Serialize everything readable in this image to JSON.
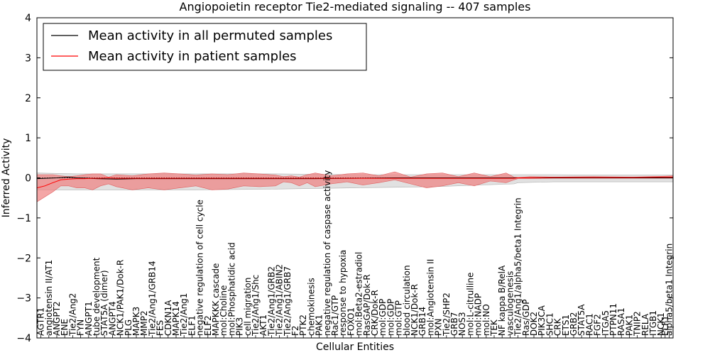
{
  "chart_data": {
    "type": "line",
    "title": "Angiopoietin receptor Tie2-mediated signaling -- 407 samples",
    "xlabel": "Cellular Entities",
    "ylabel": "Inferred Activity",
    "ylim": [
      -4,
      4
    ],
    "yticks": [
      "4",
      "3",
      "2",
      "1",
      "0",
      "−1",
      "−2",
      "−3",
      "−4"
    ],
    "ytick_values": [
      4,
      3,
      2,
      1,
      0,
      -1,
      -2,
      -3,
      -4
    ],
    "xlim": [
      0,
      160
    ],
    "legend": {
      "placement": "top-left",
      "entries": [
        {
          "label": "Mean activity in all permuted samples",
          "color": "#000000"
        },
        {
          "label": "Mean activity in patient samples",
          "color": "#ff0000"
        }
      ]
    },
    "colors": {
      "permuted": "#000000",
      "patient": "#ff0000",
      "patient_band": "#f08080",
      "permuted_band": "#c8c8c8"
    },
    "tick_labels": [
      {
        "x": 1,
        "label": "AGTR1"
      },
      {
        "x": 3,
        "label": "angiotensin II/AT1"
      },
      {
        "x": 5,
        "label": "ANGPT2"
      },
      {
        "x": 7,
        "label": "ENE"
      },
      {
        "x": 9,
        "label": "Tie2/Ang2"
      },
      {
        "x": 11,
        "label": "FYN"
      },
      {
        "x": 13,
        "label": "ANGPT1"
      },
      {
        "x": 15,
        "label": "tube development"
      },
      {
        "x": 17,
        "label": "STAT5A (dimer)"
      },
      {
        "x": 19,
        "label": "ANGPT4"
      },
      {
        "x": 21,
        "label": "NCK1/PAK1/Dok-R"
      },
      {
        "x": 23,
        "label": "PLG"
      },
      {
        "x": 25,
        "label": "MAPK3"
      },
      {
        "x": 27,
        "label": "MMP2"
      },
      {
        "x": 29,
        "label": "Tie2/Ang1/GRB14"
      },
      {
        "x": 31,
        "label": "FES"
      },
      {
        "x": 33,
        "label": "CDKN1A"
      },
      {
        "x": 35,
        "label": "MAPK14"
      },
      {
        "x": 37,
        "label": "Tie2/Ang1"
      },
      {
        "x": 39,
        "label": "ELF1"
      },
      {
        "x": 41,
        "label": "negative regulation of cell cycle"
      },
      {
        "x": 43,
        "label": "ELF2"
      },
      {
        "x": 45,
        "label": "MAPKKK cascade"
      },
      {
        "x": 47,
        "label": "mol:Choline"
      },
      {
        "x": 49,
        "label": "mol:Phosphatidic acid"
      },
      {
        "x": 51,
        "label": "PIK3"
      },
      {
        "x": 53,
        "label": "cell migration"
      },
      {
        "x": 55,
        "label": "Tie2/Ang1/Shc"
      },
      {
        "x": 57,
        "label": "AKT1"
      },
      {
        "x": 59,
        "label": "Tie2/Ang1/GRB2"
      },
      {
        "x": 61,
        "label": "Tie2/Ang1/ABIN2"
      },
      {
        "x": 63,
        "label": "Tie2/Ang1/GRB7"
      },
      {
        "x": 65,
        "label": "F2"
      },
      {
        "x": 67,
        "label": "PTK2"
      },
      {
        "x": 69,
        "label": "chemokinesis"
      },
      {
        "x": 71,
        "label": "PAK1"
      },
      {
        "x": 73,
        "label": "negative regulation of caspase activity"
      },
      {
        "x": 75,
        "label": "Rac1/GTP"
      },
      {
        "x": 77,
        "label": "response to hypoxia"
      },
      {
        "x": 79,
        "label": "FOXO1"
      },
      {
        "x": 81,
        "label": "mol:Beta2-estradiol"
      },
      {
        "x": 83,
        "label": "RasGAP/Dok-R"
      },
      {
        "x": 85,
        "label": "CRK/Dok-R"
      },
      {
        "x": 87,
        "label": "mol:GDP"
      },
      {
        "x": 89,
        "label": "mol:GDP"
      },
      {
        "x": 91,
        "label": "mol:GTP"
      },
      {
        "x": 93,
        "label": "blood circulation"
      },
      {
        "x": 95,
        "label": "NCK1/Dok-R"
      },
      {
        "x": 97,
        "label": "GRB14"
      },
      {
        "x": 99,
        "label": "mol:Angiotensin II"
      },
      {
        "x": 101,
        "label": "PXN"
      },
      {
        "x": 103,
        "label": "Tie2/SHP2"
      },
      {
        "x": 105,
        "label": "GRB7"
      },
      {
        "x": 107,
        "label": "NOS3"
      },
      {
        "x": 109,
        "label": "mol:L-citrulline"
      },
      {
        "x": 111,
        "label": "mol:NADP"
      },
      {
        "x": 113,
        "label": "mol:NO"
      },
      {
        "x": 115,
        "label": "TEK"
      },
      {
        "x": 117,
        "label": "NF kappa B/RelA"
      },
      {
        "x": 119,
        "label": "vasculogenesis"
      },
      {
        "x": 121,
        "label": "Tie2/Ang1/alpha5/beta1 Integrin"
      },
      {
        "x": 123,
        "label": "Ras/GDP"
      },
      {
        "x": 125,
        "label": "DOK2"
      },
      {
        "x": 127,
        "label": "PIK3CA"
      },
      {
        "x": 129,
        "label": "SHC1"
      },
      {
        "x": 131,
        "label": "CRK"
      },
      {
        "x": 133,
        "label": "ETS1"
      },
      {
        "x": 135,
        "label": "GRB2"
      },
      {
        "x": 137,
        "label": "STAT5A"
      },
      {
        "x": 139,
        "label": "RAC1"
      },
      {
        "x": 141,
        "label": "FGF2"
      },
      {
        "x": 143,
        "label": "ITGA5"
      },
      {
        "x": 145,
        "label": "PTPN11"
      },
      {
        "x": 147,
        "label": "RASA1"
      },
      {
        "x": 149,
        "label": "PAK1"
      },
      {
        "x": 151,
        "label": "TNIP2"
      },
      {
        "x": 153,
        "label": "RELA"
      },
      {
        "x": 155,
        "label": "ITGB1"
      },
      {
        "x": 157,
        "label": "NCK1"
      },
      {
        "x": 158,
        "label": "ELF1"
      },
      {
        "x": 159,
        "label": "alpha5/beta1 Integrin"
      }
    ],
    "series": [
      {
        "name": "Mean activity in patient samples",
        "color": "#ff0000",
        "x": [
          0,
          2,
          4,
          6,
          8,
          10,
          12,
          14,
          16,
          18,
          20,
          25,
          30,
          40,
          50,
          60,
          70,
          80,
          90,
          100,
          110,
          120,
          121,
          130,
          140,
          150,
          158,
          160
        ],
        "y": [
          -0.25,
          -0.2,
          -0.12,
          -0.05,
          -0.03,
          -0.02,
          -0.02,
          -0.01,
          -0.01,
          0.0,
          -0.01,
          -0.01,
          -0.01,
          -0.01,
          -0.01,
          -0.01,
          -0.01,
          -0.01,
          -0.01,
          -0.01,
          -0.01,
          -0.01,
          0.0,
          0.01,
          0.01,
          0.01,
          0.02,
          0.02
        ]
      },
      {
        "name": "Mean activity in all permuted samples",
        "color": "#000000",
        "x": [
          0,
          5,
          8,
          10,
          15,
          20,
          25,
          30,
          40,
          50,
          60,
          70,
          80,
          90,
          100,
          110,
          120,
          130,
          140,
          150,
          160
        ],
        "y": [
          -0.02,
          0.0,
          0.02,
          0.0,
          -0.02,
          -0.03,
          -0.02,
          -0.02,
          -0.02,
          -0.02,
          -0.02,
          -0.02,
          -0.01,
          0.0,
          0.0,
          0.0,
          0.0,
          0.0,
          0.0,
          0.0,
          0.0
        ]
      }
    ],
    "patient_band": {
      "x": [
        0,
        4,
        6,
        8,
        10,
        12,
        14,
        16,
        18,
        20,
        24,
        28,
        32,
        36,
        40,
        44,
        48,
        52,
        56,
        60,
        62,
        64,
        66,
        68,
        70,
        74,
        78,
        82,
        86,
        90,
        94,
        98,
        102,
        106,
        110,
        114,
        118,
        120,
        121,
        124,
        130,
        140,
        150,
        158,
        160
      ],
      "upper": [
        0.08,
        0.08,
        0.05,
        0.03,
        0.05,
        0.08,
        0.1,
        0.1,
        0.02,
        0.08,
        0.05,
        0.1,
        0.12,
        0.1,
        0.07,
        0.1,
        0.08,
        0.12,
        0.1,
        0.07,
        0.03,
        0.05,
        0.02,
        0.08,
        0.12,
        0.05,
        0.1,
        0.12,
        0.05,
        0.15,
        0.02,
        0.1,
        0.12,
        0.03,
        0.12,
        0.03,
        0.12,
        0.02,
        0.01,
        0.03,
        0.02,
        0.03,
        0.02,
        0.04,
        0.05
      ],
      "lower": [
        -0.6,
        -0.35,
        -0.2,
        -0.2,
        -0.25,
        -0.25,
        -0.3,
        -0.2,
        -0.15,
        -0.22,
        -0.3,
        -0.25,
        -0.3,
        -0.25,
        -0.2,
        -0.3,
        -0.28,
        -0.2,
        -0.22,
        -0.2,
        -0.1,
        -0.12,
        -0.2,
        -0.12,
        -0.22,
        -0.15,
        -0.1,
        -0.18,
        -0.12,
        -0.05,
        -0.15,
        -0.25,
        -0.2,
        -0.12,
        -0.2,
        -0.08,
        -0.12,
        -0.05,
        -0.02,
        -0.02,
        -0.01,
        -0.01,
        -0.01,
        -0.01,
        -0.01
      ]
    },
    "permuted_band": {
      "x": [
        0,
        10,
        20,
        40,
        60,
        80,
        100,
        120,
        121,
        130,
        140,
        150,
        160
      ],
      "upper": [
        0.12,
        0.1,
        0.1,
        0.1,
        0.1,
        0.08,
        0.08,
        0.08,
        0.08,
        0.08,
        0.07,
        0.07,
        0.07
      ],
      "lower": [
        -0.3,
        -0.3,
        -0.3,
        -0.3,
        -0.28,
        -0.25,
        -0.22,
        -0.15,
        -0.12,
        -0.1,
        -0.1,
        -0.1,
        -0.1
      ]
    }
  }
}
